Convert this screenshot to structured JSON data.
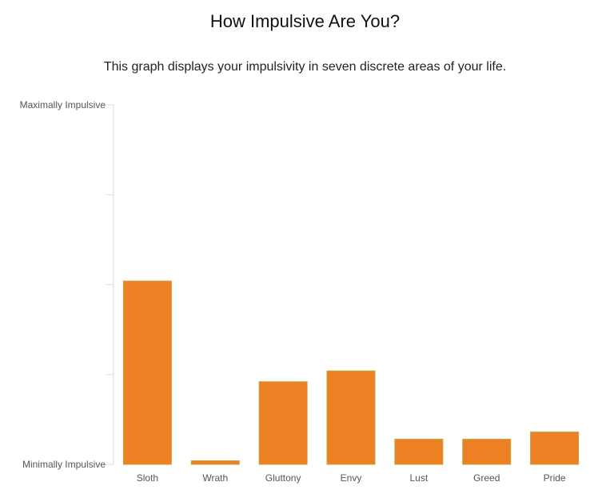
{
  "chart_data": {
    "type": "bar",
    "title": "How Impulsive Are You?",
    "subtitle": "This graph displays your impulsivity in seven discrete areas of your life.",
    "categories": [
      "Sloth",
      "Wrath",
      "Gluttony",
      "Envy",
      "Lust",
      "Greed",
      "Pride"
    ],
    "values": [
      0.51,
      0.01,
      0.23,
      0.26,
      0.07,
      0.07,
      0.09
    ],
    "ylim": [
      0,
      1
    ],
    "y_tick_count": 5,
    "y_top_label": "Maximally Impulsive",
    "y_bottom_label": "Minimally Impulsive",
    "grid": false,
    "colors": {
      "bar_fill": "#ee8024",
      "bar_stroke": "#c9a23a",
      "axis": "#dddddd"
    }
  }
}
